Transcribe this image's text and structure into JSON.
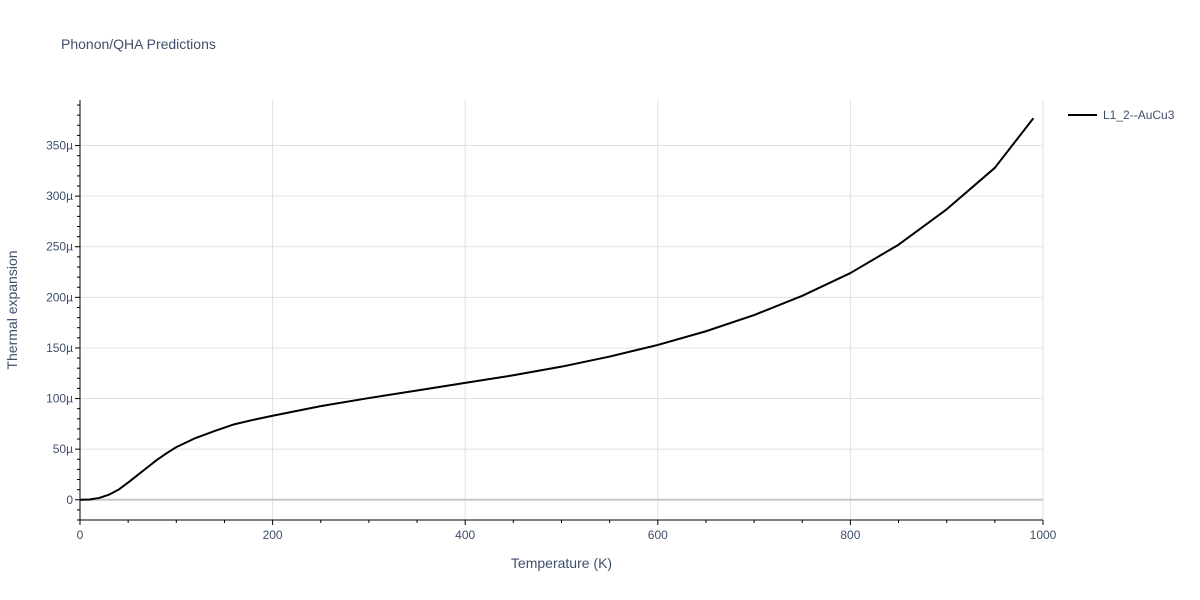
{
  "chart_data": {
    "type": "line",
    "title": "Phonon/QHA Predictions",
    "xlabel": "Temperature (K)",
    "ylabel": "Thermal expansion",
    "xlim": [
      0,
      1000
    ],
    "ylim": [
      -2e-05,
      0.000395
    ],
    "x_ticks": [
      0,
      200,
      400,
      600,
      800,
      1000
    ],
    "x_tick_labels": [
      "0",
      "200",
      "400",
      "600",
      "800",
      "1000"
    ],
    "y_ticks": [
      0,
      5e-05,
      0.0001,
      0.00015,
      0.0002,
      0.00025,
      0.0003,
      0.00035
    ],
    "y_tick_labels": [
      "0",
      "50µ",
      "100µ",
      "150µ",
      "200µ",
      "250µ",
      "300µ",
      "350µ"
    ],
    "grid": true,
    "legend_position": "top-right",
    "series": [
      {
        "name": "L1_2--AuCu3",
        "color": "#000000",
        "x": [
          0,
          10,
          20,
          30,
          40,
          50,
          60,
          70,
          80,
          90,
          100,
          120,
          140,
          160,
          180,
          200,
          250,
          300,
          350,
          400,
          450,
          500,
          550,
          600,
          650,
          700,
          750,
          800,
          850,
          900,
          950,
          990
        ],
        "y": [
          0,
          3e-07,
          1.8e-06,
          5e-06,
          1e-05,
          1.7e-05,
          2.45e-05,
          3.2e-05,
          3.95e-05,
          4.6e-05,
          5.2e-05,
          6.1e-05,
          6.8e-05,
          7.45e-05,
          7.9e-05,
          8.3e-05,
          9.25e-05,
          0.0001005,
          0.000108,
          0.0001155,
          0.000123,
          0.0001315,
          0.0001415,
          0.000153,
          0.0001665,
          0.0001825,
          0.0002015,
          0.000224,
          0.000252,
          0.000287,
          0.000328,
          0.000377
        ]
      }
    ]
  }
}
